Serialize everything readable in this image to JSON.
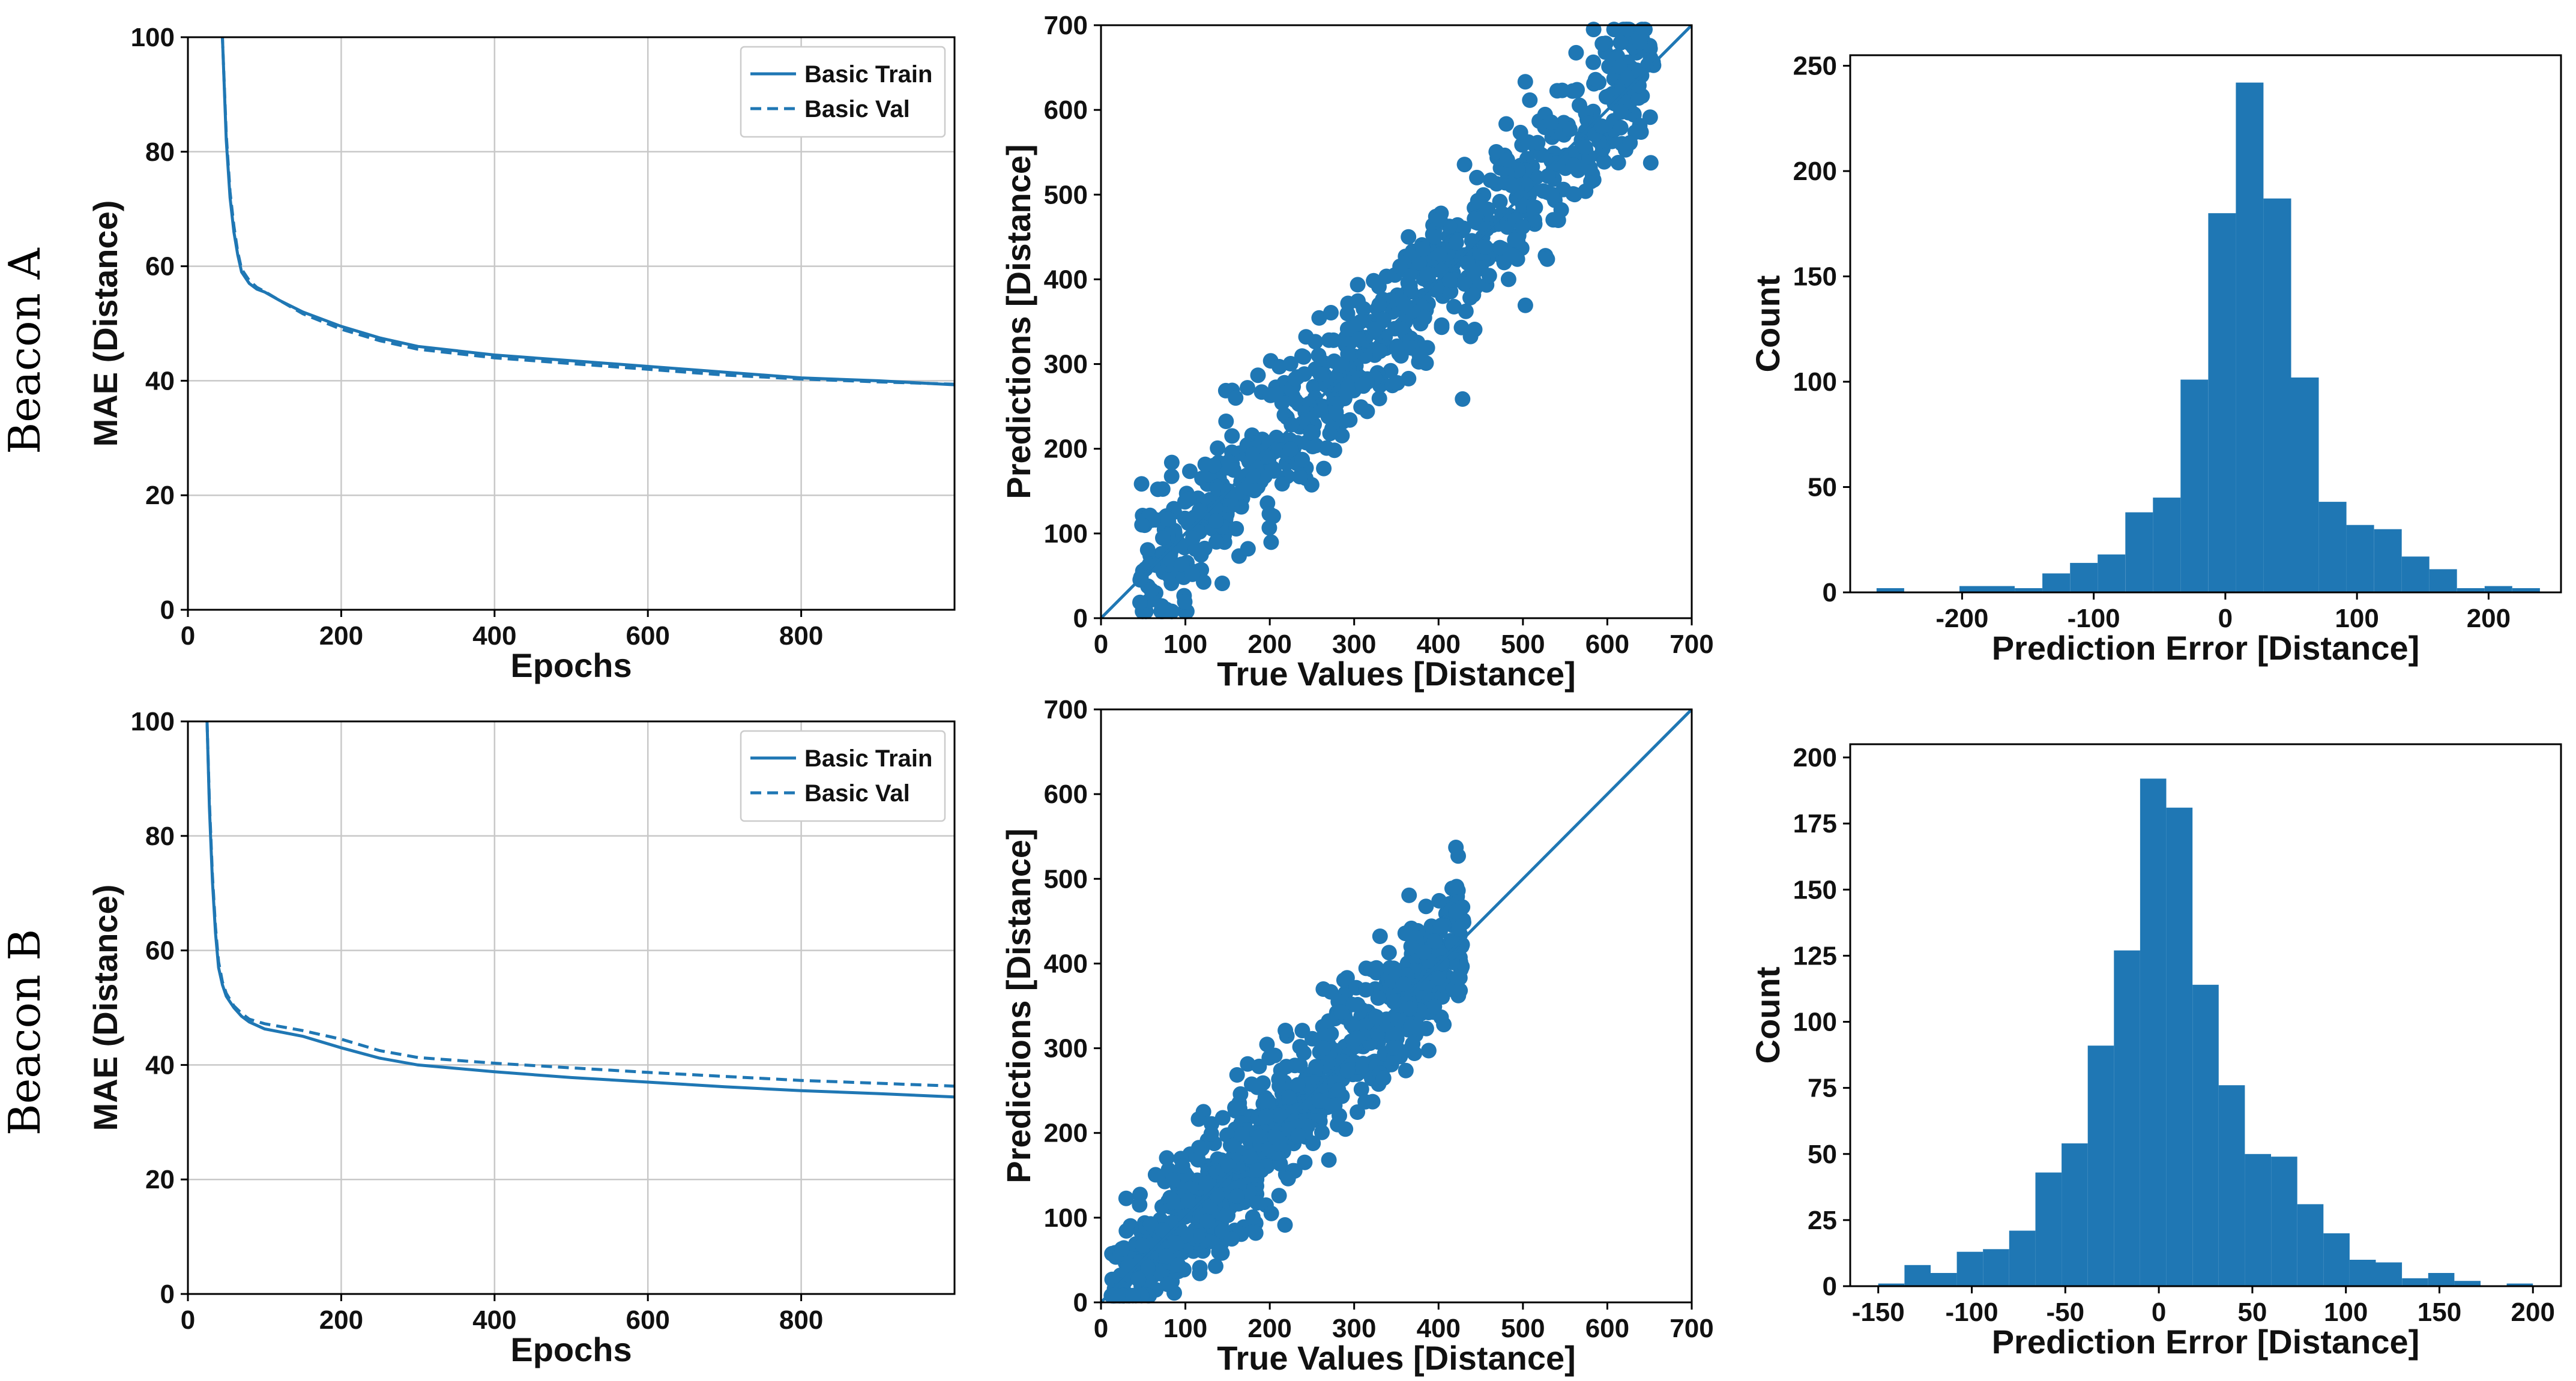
{
  "figure": {
    "row_labels": [
      "Beacon A",
      "Beacon B"
    ],
    "series_color": "#1f77b4"
  },
  "chart_data": [
    {
      "type": "line",
      "row": "Beacon A",
      "xlabel": "Epochs",
      "ylabel": "MAE (Distance)",
      "xlim": [
        0,
        1000
      ],
      "ylim": [
        0,
        100
      ],
      "xticks": [
        0,
        200,
        400,
        600,
        800
      ],
      "yticks": [
        0,
        20,
        40,
        60,
        80,
        100
      ],
      "grid": true,
      "legend_position": "top-right",
      "series": [
        {
          "name": "Basic Train",
          "style": "solid",
          "x": [
            45,
            50,
            55,
            60,
            65,
            70,
            80,
            90,
            100,
            120,
            150,
            200,
            250,
            300,
            400,
            500,
            600,
            700,
            800,
            900,
            1000
          ],
          "y": [
            100,
            82,
            72,
            66,
            62,
            59,
            57,
            56,
            55.5,
            54,
            52,
            49.5,
            47.5,
            46,
            44.5,
            43.5,
            42.5,
            41.5,
            40.5,
            40,
            39.3
          ]
        },
        {
          "name": "Basic Val",
          "style": "dashed",
          "x": [
            45,
            50,
            55,
            60,
            65,
            70,
            80,
            90,
            100,
            120,
            150,
            200,
            250,
            300,
            400,
            500,
            600,
            700,
            800,
            900,
            1000
          ],
          "y": [
            100,
            83,
            73,
            67,
            62.5,
            59.5,
            57.5,
            56.3,
            55.6,
            54,
            51.7,
            49,
            47,
            45.5,
            44,
            43,
            42,
            41,
            40.3,
            39.8,
            39.4
          ]
        }
      ]
    },
    {
      "type": "scatter",
      "row": "Beacon A",
      "xlabel": "True Values [Distance]",
      "ylabel": "Predictions [Distance]",
      "xlim": [
        0,
        700
      ],
      "ylim": [
        0,
        700
      ],
      "xticks": [
        0,
        100,
        200,
        300,
        400,
        500,
        600,
        700
      ],
      "yticks": [
        0,
        100,
        200,
        300,
        400,
        500,
        600,
        700
      ],
      "reference_line": "y = x",
      "x_range": [
        45,
        655
      ],
      "noise_sd": 45,
      "n_points": 760,
      "seed": 11
    },
    {
      "type": "histogram",
      "row": "Beacon A",
      "xlabel": "Prediction Error [Distance]",
      "ylabel": "Count",
      "xlim": [
        -285,
        255
      ],
      "ylim": [
        0,
        255
      ],
      "xticks": [
        -200,
        -100,
        0,
        100,
        200
      ],
      "yticks": [
        0,
        50,
        100,
        150,
        200,
        250
      ],
      "bins": [
        {
          "x0": -265,
          "x1": -244,
          "count": 2
        },
        {
          "x0": -244,
          "x1": -223,
          "count": 0
        },
        {
          "x0": -223,
          "x1": -202,
          "count": 0
        },
        {
          "x0": -202,
          "x1": -181,
          "count": 3
        },
        {
          "x0": -181,
          "x1": -160,
          "count": 3
        },
        {
          "x0": -160,
          "x1": -139,
          "count": 2
        },
        {
          "x0": -139,
          "x1": -118,
          "count": 9
        },
        {
          "x0": -118,
          "x1": -97,
          "count": 14
        },
        {
          "x0": -97,
          "x1": -76,
          "count": 18
        },
        {
          "x0": -76,
          "x1": -55,
          "count": 38
        },
        {
          "x0": -55,
          "x1": -34,
          "count": 45
        },
        {
          "x0": -34,
          "x1": -13,
          "count": 101
        },
        {
          "x0": -13,
          "x1": 8,
          "count": 180
        },
        {
          "x0": 8,
          "x1": 29,
          "count": 242
        },
        {
          "x0": 29,
          "x1": 50,
          "count": 187
        },
        {
          "x0": 50,
          "x1": 71,
          "count": 102
        },
        {
          "x0": 71,
          "x1": 92,
          "count": 43
        },
        {
          "x0": 92,
          "x1": 113,
          "count": 32
        },
        {
          "x0": 113,
          "x1": 134,
          "count": 30
        },
        {
          "x0": 134,
          "x1": 155,
          "count": 17
        },
        {
          "x0": 155,
          "x1": 176,
          "count": 11
        },
        {
          "x0": 176,
          "x1": 197,
          "count": 2
        },
        {
          "x0": 197,
          "x1": 218,
          "count": 3
        },
        {
          "x0": 218,
          "x1": 239,
          "count": 2
        }
      ]
    },
    {
      "type": "line",
      "row": "Beacon B",
      "xlabel": "Epochs",
      "ylabel": "MAE (Distance)",
      "xlim": [
        0,
        1000
      ],
      "ylim": [
        0,
        100
      ],
      "xticks": [
        0,
        200,
        400,
        600,
        800
      ],
      "yticks": [
        0,
        20,
        40,
        60,
        80,
        100
      ],
      "grid": true,
      "legend_position": "top-right",
      "series": [
        {
          "name": "Basic Train",
          "style": "solid",
          "x": [
            25,
            28,
            32,
            36,
            40,
            45,
            50,
            60,
            70,
            80,
            100,
            150,
            200,
            250,
            300,
            400,
            500,
            600,
            700,
            800,
            900,
            1000
          ],
          "y": [
            100,
            85,
            72,
            63,
            57,
            54,
            52,
            50,
            48.5,
            47.5,
            46.3,
            45,
            43,
            41.2,
            40,
            38.8,
            37.8,
            37,
            36.2,
            35.5,
            35,
            34.4
          ]
        },
        {
          "name": "Basic Val",
          "style": "dashed",
          "x": [
            25,
            28,
            32,
            36,
            40,
            45,
            50,
            60,
            70,
            80,
            100,
            150,
            200,
            250,
            300,
            400,
            500,
            600,
            700,
            800,
            900,
            1000
          ],
          "y": [
            100,
            86,
            73,
            64,
            58,
            54.5,
            52.5,
            50.3,
            49,
            48,
            47.2,
            46,
            44.5,
            42.5,
            41.3,
            40.3,
            39.5,
            38.7,
            38,
            37.3,
            36.8,
            36.3
          ]
        }
      ]
    },
    {
      "type": "scatter",
      "row": "Beacon B",
      "xlabel": "True Values [Distance]",
      "ylabel": "Predictions [Distance]",
      "xlim": [
        0,
        700
      ],
      "ylim": [
        0,
        700
      ],
      "xticks": [
        0,
        100,
        200,
        300,
        400,
        500,
        600,
        700
      ],
      "yticks": [
        0,
        100,
        200,
        300,
        400,
        500,
        600,
        700
      ],
      "reference_line": "y = x",
      "x_range": [
        12,
        430
      ],
      "noise_sd": 40,
      "n_points": 860,
      "seed": 29
    },
    {
      "type": "histogram",
      "row": "Beacon B",
      "xlabel": "Prediction Error [Distance]",
      "ylabel": "Count",
      "xlim": [
        -165,
        215
      ],
      "ylim": [
        0,
        205
      ],
      "xticks": [
        -150,
        -100,
        -50,
        0,
        50,
        100,
        150,
        200
      ],
      "yticks": [
        0,
        25,
        50,
        75,
        100,
        125,
        150,
        175,
        200
      ],
      "bins": [
        {
          "x0": -150,
          "x1": -136,
          "count": 1
        },
        {
          "x0": -136,
          "x1": -122,
          "count": 8
        },
        {
          "x0": -122,
          "x1": -108,
          "count": 5
        },
        {
          "x0": -108,
          "x1": -94,
          "count": 13
        },
        {
          "x0": -94,
          "x1": -80,
          "count": 14
        },
        {
          "x0": -80,
          "x1": -66,
          "count": 21
        },
        {
          "x0": -66,
          "x1": -52,
          "count": 43
        },
        {
          "x0": -52,
          "x1": -38,
          "count": 54
        },
        {
          "x0": -38,
          "x1": -24,
          "count": 91
        },
        {
          "x0": -24,
          "x1": -10,
          "count": 127
        },
        {
          "x0": -10,
          "x1": 4,
          "count": 192
        },
        {
          "x0": 4,
          "x1": 18,
          "count": 181
        },
        {
          "x0": 18,
          "x1": 32,
          "count": 114
        },
        {
          "x0": 32,
          "x1": 46,
          "count": 76
        },
        {
          "x0": 46,
          "x1": 60,
          "count": 50
        },
        {
          "x0": 60,
          "x1": 74,
          "count": 49
        },
        {
          "x0": 74,
          "x1": 88,
          "count": 31
        },
        {
          "x0": 88,
          "x1": 102,
          "count": 20
        },
        {
          "x0": 102,
          "x1": 116,
          "count": 10
        },
        {
          "x0": 116,
          "x1": 130,
          "count": 9
        },
        {
          "x0": 130,
          "x1": 144,
          "count": 3
        },
        {
          "x0": 144,
          "x1": 158,
          "count": 5
        },
        {
          "x0": 158,
          "x1": 172,
          "count": 2
        },
        {
          "x0": 172,
          "x1": 186,
          "count": 0
        },
        {
          "x0": 186,
          "x1": 200,
          "count": 1
        }
      ]
    }
  ]
}
